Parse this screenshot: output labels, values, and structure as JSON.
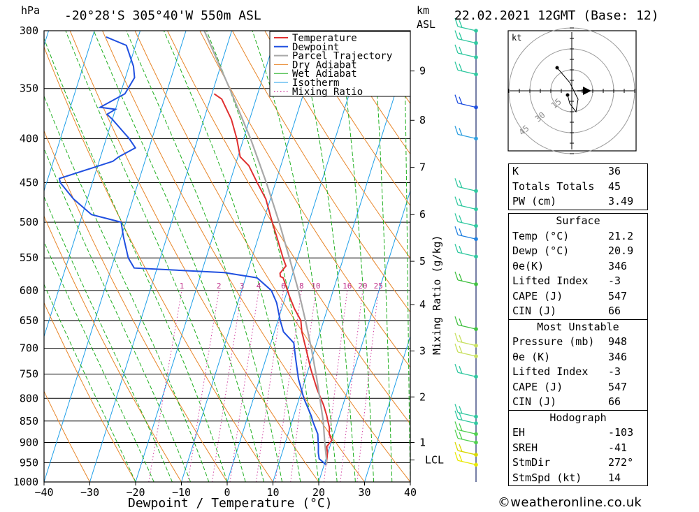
{
  "header": {
    "hpa_label": "hPa",
    "location": "-20°28'S  305°40'W  550m  ASL",
    "km_label": "km",
    "asl_label": "ASL",
    "datetime": "22.02.2021  12GMT  (Base: 12)"
  },
  "chart_data": {
    "type": "line",
    "title": "-20°28'S 305°40'W 550m ASL skew-T log-P diagram",
    "xlabel": "Dewpoint / Temperature (°C)",
    "ylabel": "hPa",
    "right_axis_label": "Mixing Ratio (g/kg)",
    "xlim": [
      -40,
      40
    ],
    "ylim": [
      1000,
      300
    ],
    "pressure_ticks": [
      300,
      350,
      400,
      450,
      500,
      550,
      600,
      650,
      700,
      750,
      800,
      850,
      900,
      950,
      1000
    ],
    "temperature_ticks": [
      -40,
      -30,
      -20,
      -10,
      0,
      10,
      20,
      30,
      40
    ],
    "km_ticks": [
      {
        "label": "1",
        "p": 900
      },
      {
        "label": "2",
        "p": 797
      },
      {
        "label": "3",
        "p": 705
      },
      {
        "label": "4",
        "p": 623
      },
      {
        "label": "5",
        "p": 555
      },
      {
        "label": "6",
        "p": 490
      },
      {
        "label": "7",
        "p": 432
      },
      {
        "label": "8",
        "p": 381
      },
      {
        "label": "9",
        "p": 334
      }
    ],
    "lcl": {
      "label": "LCL",
      "p": 943
    },
    "mixing_ratio_labels": [
      "1",
      "2",
      "3",
      "4",
      "6",
      "8",
      "10",
      "16",
      "20",
      "25"
    ],
    "mixing_ratio_values": [
      1,
      2,
      3,
      4,
      6,
      8,
      10,
      16,
      20,
      25
    ],
    "legend": [
      "Temperature",
      "Dewpoint",
      "Parcel Trajectory",
      "Dry Adiabat",
      "Wet Adiabat",
      "Isotherm",
      "Mixing Ratio"
    ],
    "series": [
      {
        "name": "Temperature",
        "color": "#e03030",
        "points": [
          [
            955,
            20.5
          ],
          [
            940,
            20.2
          ],
          [
            925,
            19.9
          ],
          [
            910,
            19.3
          ],
          [
            895,
            20.0
          ],
          [
            880,
            19.0
          ],
          [
            865,
            18.6
          ],
          [
            850,
            17.8
          ],
          [
            838,
            17.2
          ],
          [
            815,
            15.8
          ],
          [
            780,
            13.2
          ],
          [
            740,
            10.5
          ],
          [
            700,
            8.0
          ],
          [
            670,
            6.0
          ],
          [
            650,
            5.0
          ],
          [
            630,
            2.8
          ],
          [
            610,
            0.9
          ],
          [
            580,
            -1.8
          ],
          [
            578,
            -2.5
          ],
          [
            573,
            -2.8
          ],
          [
            562,
            -2.0
          ],
          [
            550,
            -3.2
          ],
          [
            520,
            -6.0
          ],
          [
            500,
            -8.0
          ],
          [
            470,
            -11.0
          ],
          [
            450,
            -14.0
          ],
          [
            430,
            -17.0
          ],
          [
            420,
            -19.5
          ],
          [
            400,
            -21.5
          ],
          [
            380,
            -24.0
          ],
          [
            360,
            -27.5
          ],
          [
            355,
            -29.5
          ]
        ]
      },
      {
        "name": "Dewpoint",
        "color": "#2050e0",
        "points": [
          [
            955,
            20.4
          ],
          [
            940,
            18.5
          ],
          [
            925,
            17.9
          ],
          [
            910,
            17.5
          ],
          [
            895,
            17.0
          ],
          [
            880,
            16.5
          ],
          [
            865,
            15.5
          ],
          [
            850,
            14.5
          ],
          [
            838,
            13.8
          ],
          [
            800,
            11.0
          ],
          [
            760,
            8.5
          ],
          [
            720,
            6.5
          ],
          [
            700,
            5.5
          ],
          [
            690,
            5.0
          ],
          [
            670,
            2.0
          ],
          [
            650,
            0.5
          ],
          [
            620,
            -1.5
          ],
          [
            600,
            -3.5
          ],
          [
            580,
            -7.5
          ],
          [
            572,
            -15.0
          ],
          [
            565,
            -35.0
          ],
          [
            550,
            -37.0
          ],
          [
            520,
            -39.5
          ],
          [
            500,
            -41.0
          ],
          [
            490,
            -48.0
          ],
          [
            470,
            -53.0
          ],
          [
            450,
            -57.0
          ],
          [
            445,
            -57.5
          ],
          [
            425,
            -47.0
          ],
          [
            420,
            -46.0
          ],
          [
            410,
            -43.0
          ],
          [
            400,
            -45.0
          ],
          [
            380,
            -50.0
          ],
          [
            375,
            -51.5
          ],
          [
            370,
            -50.0
          ],
          [
            368,
            -53.5
          ],
          [
            355,
            -49.0
          ],
          [
            340,
            -48.0
          ],
          [
            330,
            -49.0
          ],
          [
            312,
            -52.0
          ],
          [
            305,
            -57.0
          ]
        ]
      },
      {
        "name": "Parcel Trajectory",
        "color": "#a8a8a8",
        "points": [
          [
            955,
            20.5
          ],
          [
            943,
            20.2
          ],
          [
            900,
            18.6
          ],
          [
            850,
            16.8
          ],
          [
            800,
            14.5
          ],
          [
            750,
            12.0
          ],
          [
            700,
            9.2
          ],
          [
            650,
            6.0
          ],
          [
            600,
            2.4
          ],
          [
            550,
            -1.8
          ],
          [
            500,
            -6.5
          ],
          [
            450,
            -12.0
          ],
          [
            400,
            -18.5
          ],
          [
            350,
            -26.5
          ],
          [
            300,
            -36.0
          ]
        ]
      }
    ],
    "wind_profile": [
      {
        "p": 955,
        "color": "#e8e800"
      },
      {
        "p": 930,
        "color": "#d8d800"
      },
      {
        "p": 900,
        "color": "#50d050"
      },
      {
        "p": 880,
        "color": "#50d050"
      },
      {
        "p": 855,
        "color": "#30c8a0"
      },
      {
        "p": 840,
        "color": "#30c8a0"
      },
      {
        "p": 755,
        "color": "#30c8a0"
      },
      {
        "p": 715,
        "color": "#c8e060"
      },
      {
        "p": 695,
        "color": "#c8e060"
      },
      {
        "p": 665,
        "color": "#40c040"
      },
      {
        "p": 590,
        "color": "#40c040"
      },
      {
        "p": 548,
        "color": "#30c8a0"
      },
      {
        "p": 523,
        "color": "#2080e0"
      },
      {
        "p": 505,
        "color": "#30c8a0"
      },
      {
        "p": 483,
        "color": "#30c8a0"
      },
      {
        "p": 460,
        "color": "#30c8a0"
      },
      {
        "p": 400,
        "color": "#30a0e0"
      },
      {
        "p": 368,
        "color": "#2050e0"
      },
      {
        "p": 337,
        "color": "#30c8a0"
      },
      {
        "p": 322,
        "color": "#30c8a0"
      },
      {
        "p": 310,
        "color": "#30c8a0"
      },
      {
        "p": 300,
        "color": "#30c8a0"
      }
    ],
    "hodograph": {
      "unit_label": "kt",
      "ring_labels": [
        "15",
        "30",
        "45"
      ],
      "trace": [
        [
          -2,
          -2
        ],
        [
          -1,
          -6
        ],
        [
          2,
          -10
        ],
        [
          3,
          -4
        ],
        [
          -1,
          4
        ],
        [
          -7,
          11
        ]
      ]
    }
  },
  "stats": {
    "top": [
      {
        "label": "K",
        "value": "36"
      },
      {
        "label": "Totals Totals",
        "value": "45"
      },
      {
        "label": "PW (cm)",
        "value": "3.49"
      }
    ],
    "surface": {
      "title": "Surface",
      "rows": [
        {
          "label": "Temp (°C)",
          "value": "21.2"
        },
        {
          "label": "Dewp (°C)",
          "value": "20.9"
        },
        {
          "label": "θe(K)",
          "value": "346"
        },
        {
          "label": "Lifted Index",
          "value": "-3"
        },
        {
          "label": "CAPE (J)",
          "value": "547"
        },
        {
          "label": "CIN (J)",
          "value": "66"
        }
      ]
    },
    "most_unstable": {
      "title": "Most Unstable",
      "rows": [
        {
          "label": "Pressure (mb)",
          "value": "948"
        },
        {
          "label": "θe (K)",
          "value": "346"
        },
        {
          "label": "Lifted Index",
          "value": "-3"
        },
        {
          "label": "CAPE (J)",
          "value": "547"
        },
        {
          "label": "CIN (J)",
          "value": "66"
        }
      ]
    },
    "hodograph": {
      "title": "Hodograph",
      "rows": [
        {
          "label": "EH",
          "value": "-103"
        },
        {
          "label": "SREH",
          "value": "-41"
        },
        {
          "label": "StmDir",
          "value": "272°"
        },
        {
          "label": "StmSpd (kt)",
          "value": "14"
        }
      ]
    }
  },
  "credit": "©weatheronline.co.uk"
}
